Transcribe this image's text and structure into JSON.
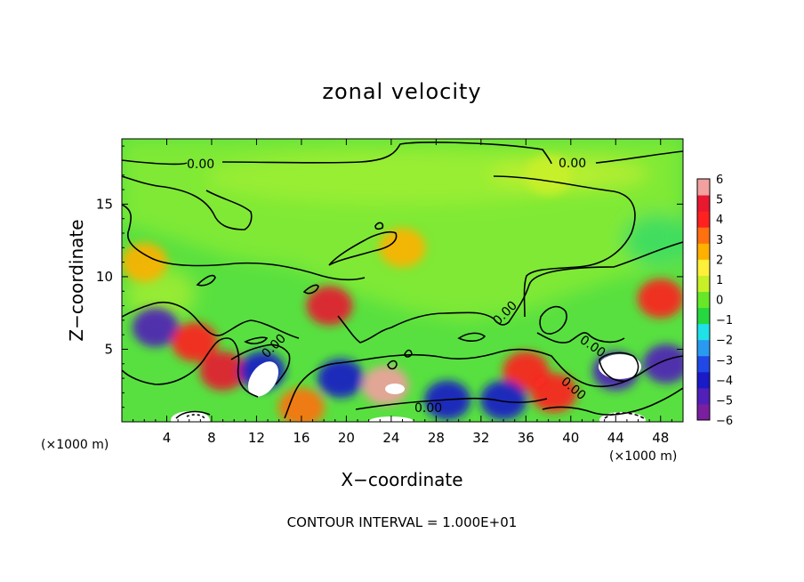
{
  "chart_data": {
    "type": "heatmap",
    "title": "zonal velocity",
    "xlabel": "X−coordinate",
    "ylabel": "Z−coordinate",
    "x_unit_left": "(×1000 m)",
    "x_unit_right": "(×1000 m)",
    "xlim": [
      0,
      50
    ],
    "ylim": [
      0,
      19.5
    ],
    "x_ticks": [
      4,
      8,
      12,
      16,
      20,
      24,
      28,
      32,
      36,
      40,
      44,
      48
    ],
    "x_tick_labels": [
      "4",
      "8",
      "12",
      "16",
      "20",
      "24",
      "28",
      "32",
      "36",
      "40",
      "44",
      "48"
    ],
    "y_ticks": [
      5,
      10,
      15
    ],
    "y_tick_labels": [
      "5",
      "10",
      "15"
    ],
    "colorbar": {
      "range": [
        -6,
        6
      ],
      "ticks": [
        6,
        5,
        4,
        3,
        2,
        1,
        0,
        -1,
        -2,
        -3,
        -4,
        -5,
        -6
      ],
      "tick_labels": [
        "6",
        "5",
        "4",
        "3",
        "2",
        "1",
        "0",
        "−1",
        "−2",
        "−3",
        "−4",
        "−5",
        "−6"
      ],
      "colors": [
        "#7a1fa0",
        "#5020b8",
        "#1a1ac8",
        "#2048e6",
        "#2a9af0",
        "#20e0e8",
        "#26d840",
        "#66e828",
        "#c8f028",
        "#fff03a",
        "#ffb000",
        "#ff7010",
        "#ff2020",
        "#e81830",
        "#f2a0a0"
      ]
    },
    "contour_interval_text": "CONTOUR INTERVAL = 1.000E+01",
    "contour_labels": [
      "0.00",
      "0.00",
      "0.00",
      "0.00",
      "0.00",
      "0.00",
      "0.00"
    ],
    "features": [
      {
        "x": 9,
        "z": 3.5,
        "value": 4.5
      },
      {
        "x": 3,
        "z": 6.5,
        "value": -4.5
      },
      {
        "x": 2,
        "z": 11,
        "value": 2.5
      },
      {
        "x": 6.5,
        "z": 5.5,
        "value": 4
      },
      {
        "x": 12.5,
        "z": 3.5,
        "value": -4
      },
      {
        "x": 18.5,
        "z": 8,
        "value": 4.5
      },
      {
        "x": 19.5,
        "z": 3,
        "value": -4
      },
      {
        "x": 23.5,
        "z": 2.5,
        "value": 5.5
      },
      {
        "x": 29,
        "z": 1.5,
        "value": -4
      },
      {
        "x": 36,
        "z": 3.5,
        "value": 4
      },
      {
        "x": 34,
        "z": 1.5,
        "value": -4
      },
      {
        "x": 44,
        "z": 3.5,
        "value": -4.5
      },
      {
        "x": 48,
        "z": 8.5,
        "value": 4
      },
      {
        "x": 48.5,
        "z": 4,
        "value": -5
      },
      {
        "x": 38.5,
        "z": 2,
        "value": 4
      },
      {
        "x": 16,
        "z": 1,
        "value": 3.5
      },
      {
        "x": 25,
        "z": 12,
        "value": 2
      },
      {
        "x": 38,
        "z": 17,
        "value": 0.8
      }
    ]
  }
}
